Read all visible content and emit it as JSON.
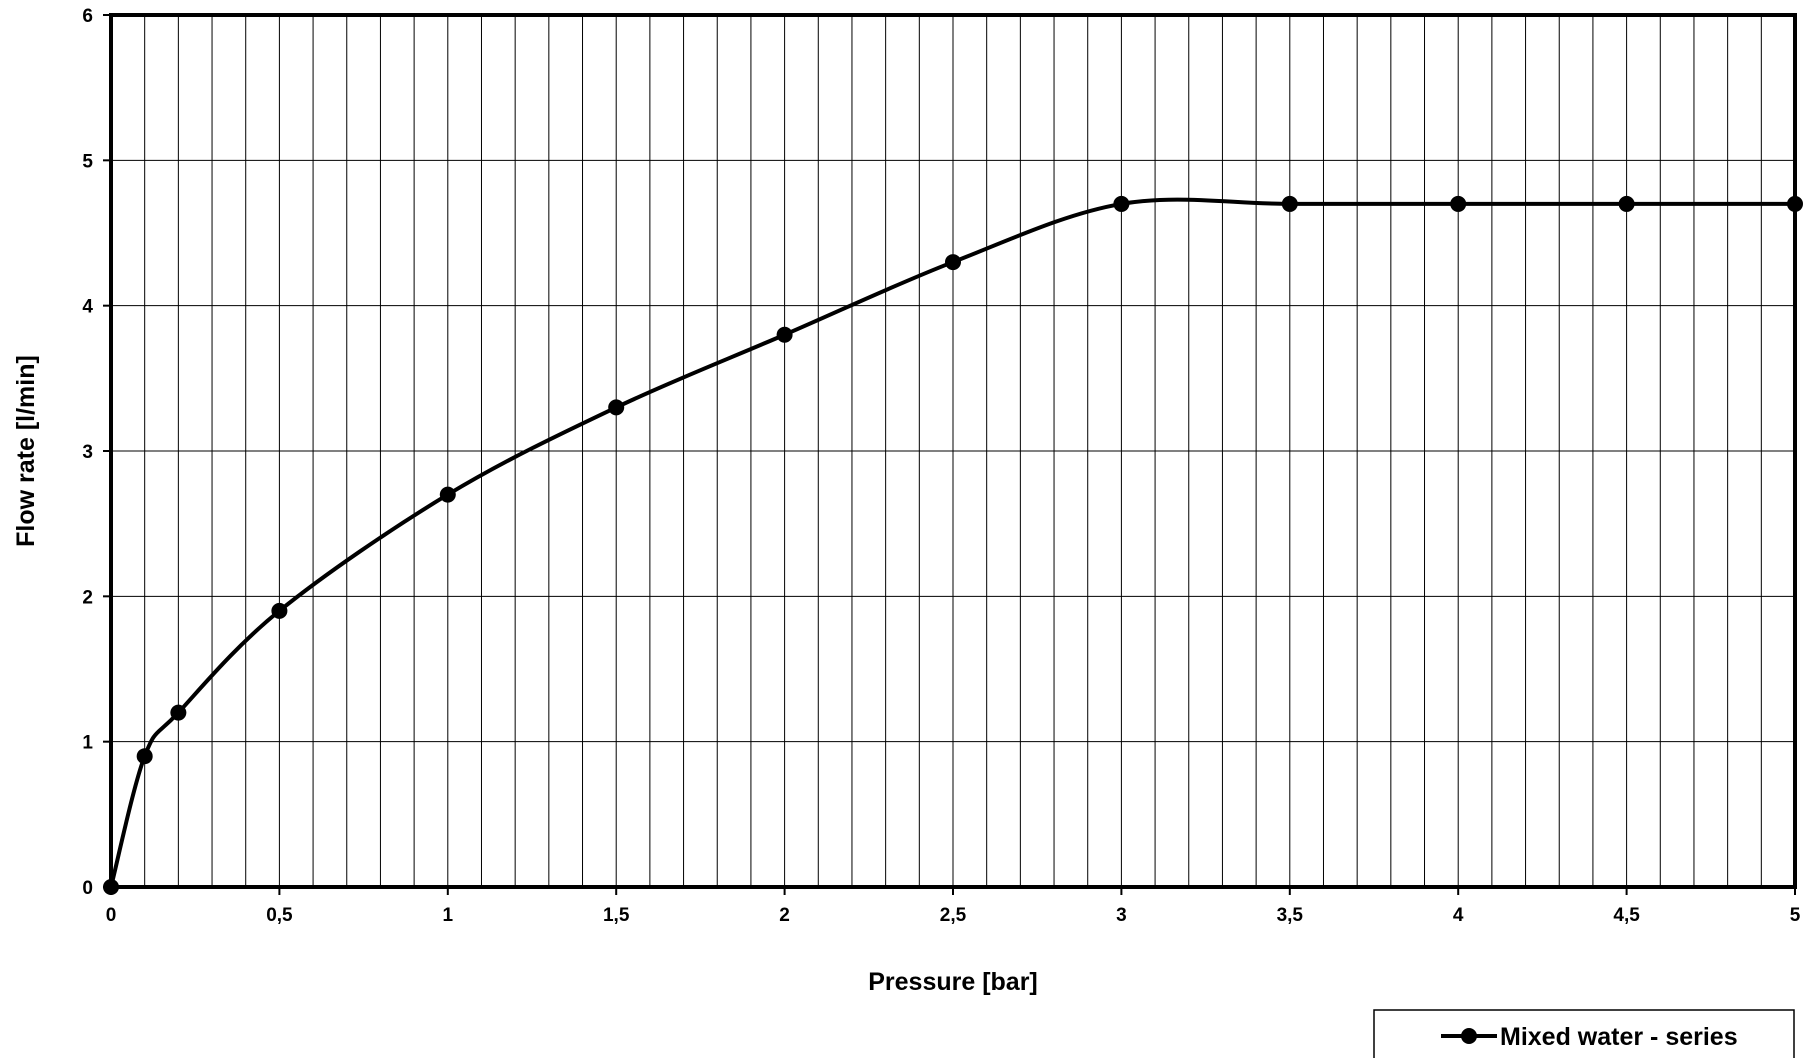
{
  "chart_data": {
    "type": "line",
    "title": "",
    "xlabel": "Pressure [bar]",
    "ylabel": "Flow rate [l/min]",
    "xlim": [
      0,
      5
    ],
    "ylim": [
      0,
      6
    ],
    "x_ticks": [
      0,
      0.5,
      1,
      1.5,
      2,
      2.5,
      3,
      3.5,
      4,
      4.5,
      5
    ],
    "x_tick_labels": [
      "0",
      "0,5",
      "1",
      "1,5",
      "2",
      "2,5",
      "3",
      "3,5",
      "4",
      "4,5",
      "5"
    ],
    "y_ticks": [
      0,
      1,
      2,
      3,
      4,
      5,
      6
    ],
    "y_tick_labels": [
      "0",
      "1",
      "2",
      "3",
      "4",
      "5",
      "6"
    ],
    "x_minor_gridline_step": 0.1,
    "grid": true,
    "legend_position": "bottom-right",
    "series": [
      {
        "name": "Mixed water - series",
        "color": "#000000",
        "marker": "circle",
        "smooth": true,
        "x": [
          0,
          0.1,
          0.2,
          0.5,
          1,
          1.5,
          2,
          2.5,
          3,
          3.5,
          4,
          4.5,
          5
        ],
        "y": [
          0,
          0.9,
          1.2,
          1.9,
          2.7,
          3.3,
          3.8,
          4.3,
          4.7,
          4.7,
          4.7,
          4.7,
          4.7
        ]
      }
    ]
  }
}
